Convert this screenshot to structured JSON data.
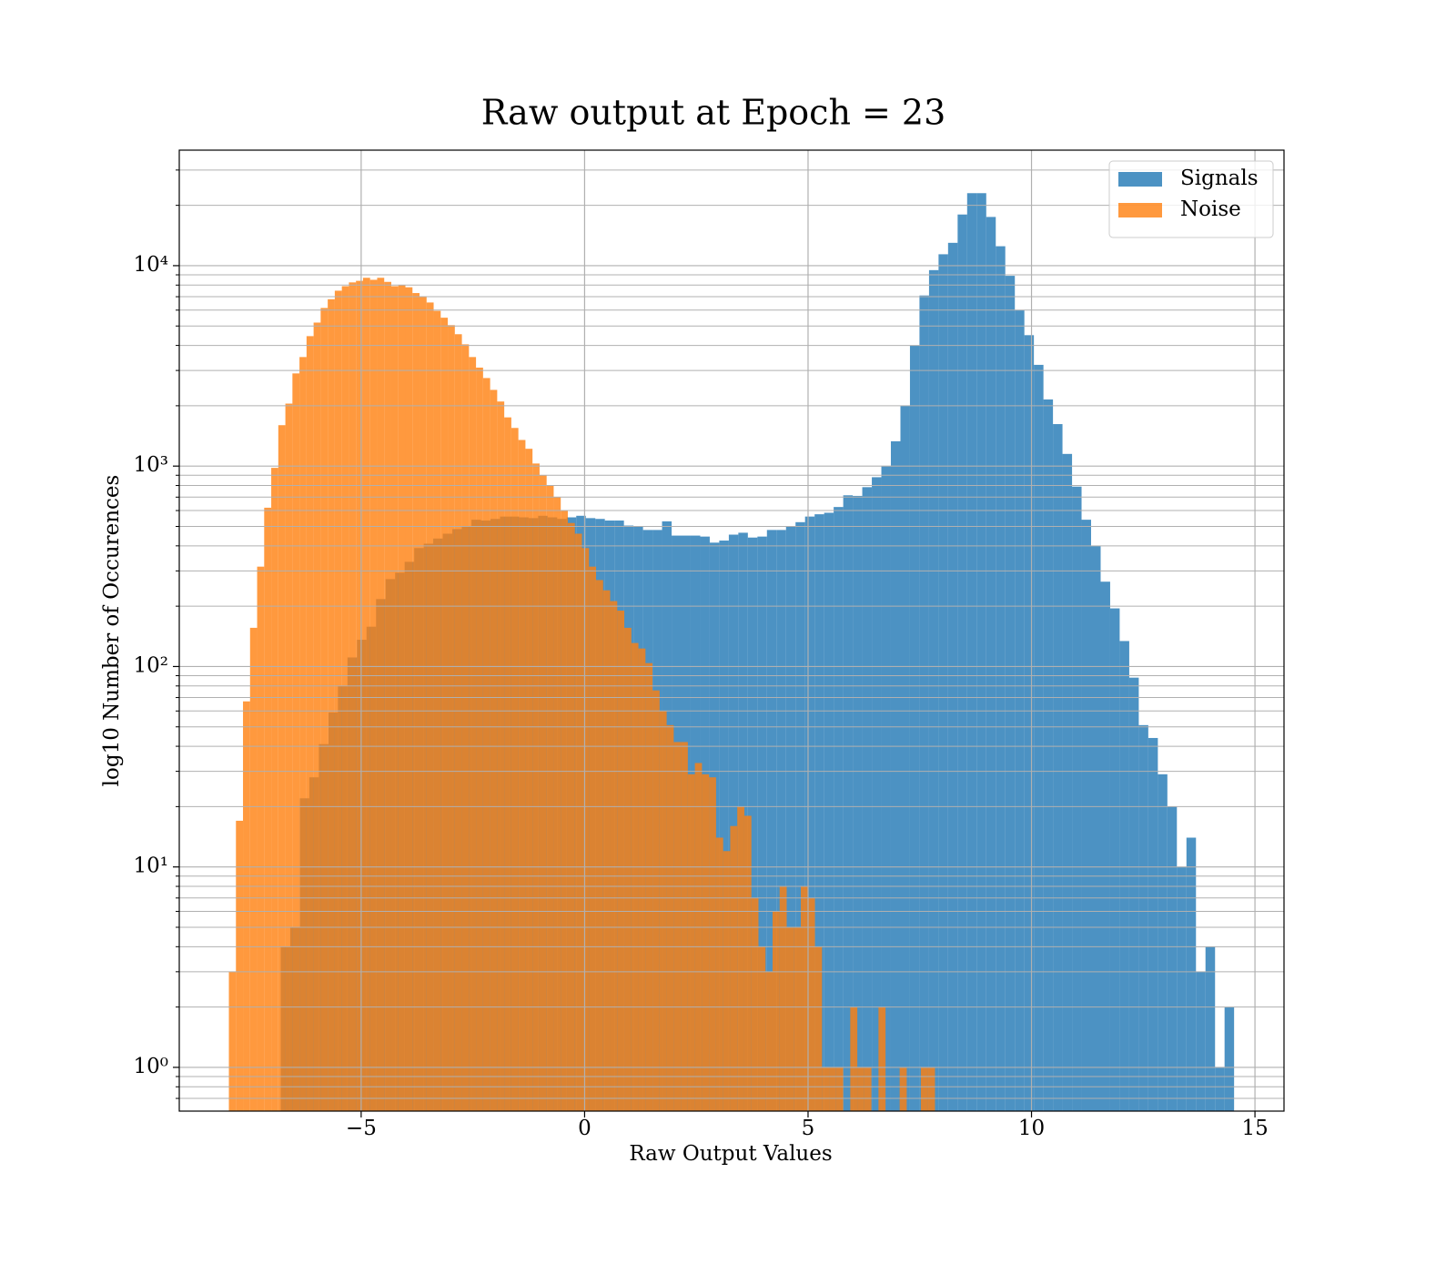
{
  "chart_data": {
    "type": "histogram",
    "title": "Raw output at Epoch = 23",
    "x_label": "Raw Output Values",
    "y_label": "log10 Number of Occurences",
    "log_y": true,
    "grid": true,
    "minor_grid": true,
    "legend_position": "upper right",
    "alpha": 0.8,
    "xlim": [
      -9.07,
      15.65
    ],
    "ylim": [
      0.605,
      37700
    ],
    "xticks": [
      {
        "value": -5,
        "label": "−5"
      },
      0,
      5,
      10,
      15
    ],
    "yticks": [
      {
        "value": 1,
        "label": "10⁰"
      },
      {
        "value": 10,
        "label": "10¹"
      },
      {
        "value": 100,
        "label": "10²"
      },
      {
        "value": 1000,
        "label": "10³"
      },
      {
        "value": 10000,
        "label": "10⁴"
      }
    ],
    "series": [
      {
        "name": "Signals",
        "color": "#1f77b4",
        "bins": [
          -6.8,
          -6.587,
          -6.373,
          -6.16,
          -5.947,
          -5.733,
          -5.52,
          -5.307,
          -5.093,
          -4.88,
          -4.667,
          -4.453,
          -4.24,
          -4.027,
          -3.813,
          -3.6,
          -3.387,
          -3.173,
          -2.96,
          -2.747,
          -2.533,
          -2.32,
          -2.107,
          -1.893,
          -1.68,
          -1.467,
          -1.253,
          -1.04,
          -0.827,
          -0.613,
          -0.4,
          -0.187,
          0.027,
          0.24,
          0.453,
          0.667,
          0.88,
          1.093,
          1.307,
          1.52,
          1.733,
          1.947,
          2.16,
          2.373,
          2.587,
          2.8,
          3.013,
          3.227,
          3.44,
          3.653,
          3.867,
          4.08,
          4.293,
          4.507,
          4.72,
          4.933,
          5.147,
          5.36,
          5.573,
          5.787,
          6.0,
          6.213,
          6.427,
          6.64,
          6.853,
          7.067,
          7.28,
          7.493,
          7.707,
          7.92,
          8.133,
          8.347,
          8.56,
          8.773,
          8.987,
          9.2,
          9.413,
          9.627,
          9.84,
          10.053,
          10.267,
          10.48,
          10.693,
          10.907,
          11.12,
          11.333,
          11.547,
          11.76,
          11.973,
          12.187,
          12.4,
          12.613,
          12.827,
          13.04,
          13.253,
          13.467,
          13.68,
          13.893,
          14.107,
          14.32,
          14.533
        ],
        "values": [
          4,
          5,
          22,
          28,
          41,
          59,
          80,
          111,
          136,
          158,
          217,
          273,
          294,
          333,
          390,
          410,
          435,
          460,
          485,
          500,
          540,
          535,
          545,
          560,
          560,
          555,
          550,
          565,
          555,
          545,
          555,
          565,
          550,
          545,
          535,
          535,
          505,
          500,
          480,
          480,
          530,
          450,
          450,
          450,
          445,
          415,
          425,
          455,
          465,
          440,
          445,
          480,
          480,
          500,
          525,
          560,
          575,
          585,
          625,
          715,
          710,
          785,
          880,
          1000,
          1330,
          2000,
          4000,
          7100,
          9500,
          11400,
          13000,
          18000,
          23000,
          23000,
          17500,
          12500,
          8900,
          6000,
          4500,
          3200,
          2150,
          1620,
          1150,
          790,
          540,
          400,
          265,
          195,
          134,
          88,
          51,
          44,
          29,
          20,
          10,
          14,
          3,
          4,
          1,
          2
        ]
      },
      {
        "name": "Noise",
        "color": "#ff7f0e",
        "bins": [
          -7.96,
          -7.802,
          -7.644,
          -7.486,
          -7.328,
          -7.17,
          -7.012,
          -6.854,
          -6.696,
          -6.538,
          -6.38,
          -6.222,
          -6.064,
          -5.906,
          -5.748,
          -5.59,
          -5.432,
          -5.274,
          -5.116,
          -4.958,
          -4.8,
          -4.642,
          -4.484,
          -4.326,
          -4.168,
          -4.01,
          -3.852,
          -3.694,
          -3.536,
          -3.378,
          -3.22,
          -3.062,
          -2.904,
          -2.746,
          -2.588,
          -2.43,
          -2.272,
          -2.114,
          -1.956,
          -1.798,
          -1.64,
          -1.482,
          -1.324,
          -1.166,
          -1.008,
          -0.85,
          -0.692,
          -0.534,
          -0.376,
          -0.218,
          -0.06,
          0.098,
          0.256,
          0.414,
          0.572,
          0.73,
          0.888,
          1.046,
          1.204,
          1.362,
          1.52,
          1.678,
          1.836,
          1.994,
          2.152,
          2.31,
          2.468,
          2.626,
          2.784,
          2.942,
          3.1,
          3.258,
          3.416,
          3.574,
          3.732,
          3.89,
          4.048,
          4.206,
          4.364,
          4.522,
          4.68,
          4.838,
          4.996,
          5.154,
          5.312,
          5.47,
          5.628,
          5.786,
          5.944,
          6.102,
          6.26,
          6.418,
          6.576,
          6.734,
          6.892,
          7.05,
          7.208,
          7.366,
          7.524,
          7.682,
          7.84
        ],
        "values": [
          3,
          17,
          67,
          156,
          315,
          620,
          980,
          1600,
          2050,
          2900,
          3500,
          4450,
          5200,
          6150,
          6800,
          7500,
          7900,
          8250,
          8400,
          8700,
          8500,
          8700,
          8300,
          7900,
          8000,
          7800,
          7300,
          7000,
          6550,
          5950,
          5500,
          5050,
          4550,
          4050,
          3500,
          3100,
          2750,
          2400,
          2100,
          1750,
          1550,
          1350,
          1220,
          1030,
          900,
          800,
          700,
          600,
          520,
          460,
          390,
          315,
          270,
          240,
          212,
          190,
          156,
          131,
          123,
          104,
          76,
          60,
          51,
          42,
          42,
          29,
          33,
          29,
          28,
          14,
          12,
          16,
          20,
          18,
          7,
          4,
          3,
          6,
          8,
          5,
          5,
          8,
          7,
          4,
          1,
          1,
          1,
          0,
          2,
          1,
          1,
          0,
          2,
          0,
          0,
          1,
          0,
          0,
          1,
          1
        ]
      }
    ]
  }
}
